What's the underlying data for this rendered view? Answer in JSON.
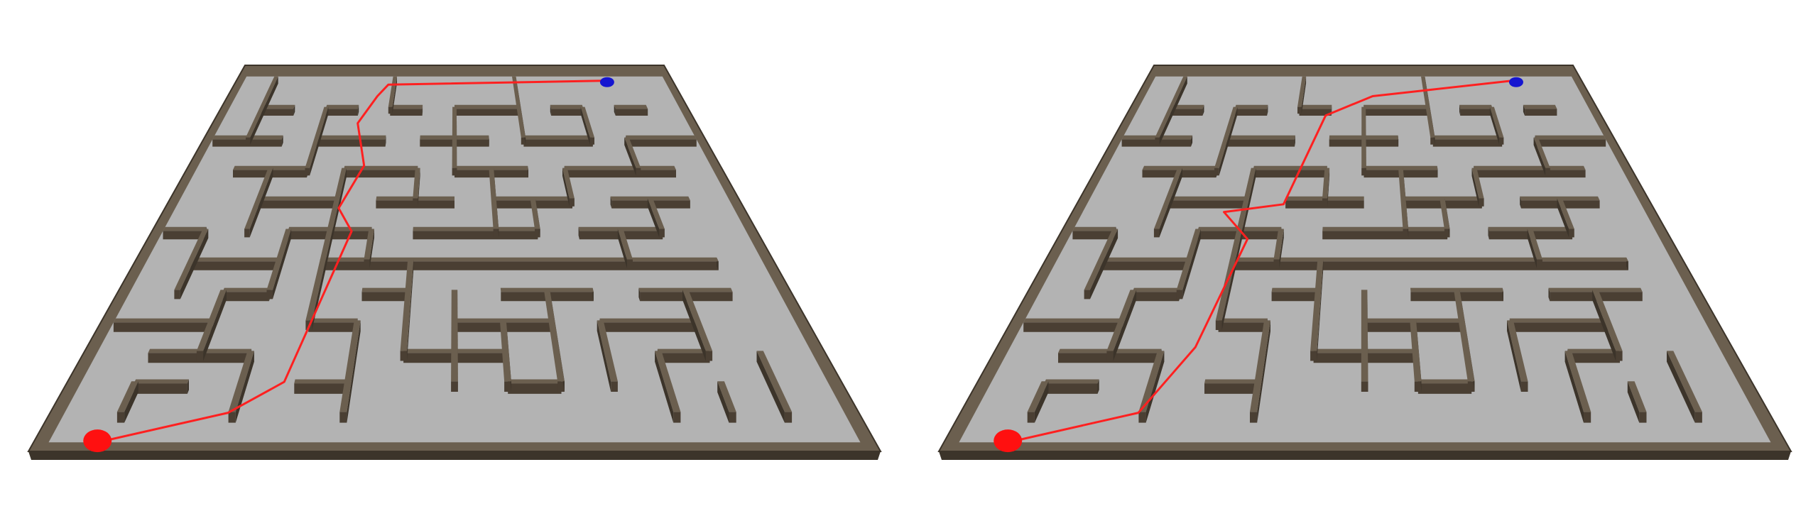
{
  "scene": {
    "background": "#ffffff",
    "floor_color": "#b3b3b3",
    "wall_top_color": "#6b5f4f",
    "wall_front_color": "#4a3f33",
    "wall_side_color": "#3c342a",
    "start_marker_color": "#ff1010",
    "goal_marker_color": "#1515d0",
    "path_color": "#ff2020"
  },
  "views": [
    {
      "id": "left",
      "path_nodes": [
        [
          0.07,
          0.98
        ],
        [
          0.22,
          0.9
        ],
        [
          0.28,
          0.82
        ],
        [
          0.33,
          0.43
        ],
        [
          0.3,
          0.37
        ],
        [
          0.33,
          0.26
        ],
        [
          0.3,
          0.15
        ],
        [
          0.33,
          0.08
        ],
        [
          0.35,
          0.05
        ],
        [
          0.84,
          0.04
        ]
      ]
    },
    {
      "id": "right",
      "path_nodes": [
        [
          0.07,
          0.98
        ],
        [
          0.22,
          0.9
        ],
        [
          0.27,
          0.73
        ],
        [
          0.31,
          0.45
        ],
        [
          0.26,
          0.38
        ],
        [
          0.36,
          0.36
        ],
        [
          0.42,
          0.13
        ],
        [
          0.52,
          0.08
        ],
        [
          0.84,
          0.04
        ]
      ]
    }
  ],
  "maze": {
    "grid": [
      14,
      12
    ],
    "walls": [
      [
        1,
        1,
        2,
        1
      ],
      [
        3,
        1,
        4,
        1
      ],
      [
        5,
        1,
        6,
        1
      ],
      [
        7,
        1,
        9,
        1
      ],
      [
        10,
        1,
        11,
        1
      ],
      [
        12,
        1,
        13,
        1
      ],
      [
        0,
        2,
        2,
        2
      ],
      [
        3,
        2,
        5,
        2
      ],
      [
        6,
        2,
        8,
        2
      ],
      [
        9,
        2,
        11,
        2
      ],
      [
        12,
        2,
        14,
        2
      ],
      [
        1,
        3,
        3,
        3
      ],
      [
        4,
        3,
        6,
        3
      ],
      [
        7,
        3,
        9,
        3
      ],
      [
        10,
        3,
        13,
        3
      ],
      [
        2,
        4,
        4,
        4
      ],
      [
        5,
        4,
        7,
        4
      ],
      [
        8,
        4,
        10,
        4
      ],
      [
        11,
        4,
        13,
        4
      ],
      [
        0,
        5,
        1,
        5
      ],
      [
        3,
        5,
        5,
        5
      ],
      [
        6,
        5,
        9,
        5
      ],
      [
        10,
        5,
        12,
        5
      ],
      [
        1,
        6,
        3,
        6
      ],
      [
        4,
        6,
        13,
        6
      ],
      [
        2,
        7,
        3,
        7
      ],
      [
        5,
        7,
        6,
        7
      ],
      [
        8,
        7,
        10,
        7
      ],
      [
        11,
        7,
        13,
        7
      ],
      [
        0,
        8,
        2,
        8
      ],
      [
        4,
        8,
        5,
        8
      ],
      [
        7,
        8,
        9,
        8
      ],
      [
        10,
        8,
        12,
        8
      ],
      [
        1,
        9,
        3,
        9
      ],
      [
        6,
        9,
        8,
        9
      ],
      [
        11,
        9,
        12,
        9
      ],
      [
        1,
        10,
        2,
        10
      ],
      [
        4,
        10,
        5,
        10
      ],
      [
        8,
        10,
        9,
        10
      ],
      [
        1,
        0,
        1,
        2
      ],
      [
        3,
        1,
        3,
        3
      ],
      [
        5,
        0,
        5,
        1
      ],
      [
        7,
        1,
        7,
        3
      ],
      [
        9,
        0,
        9,
        2
      ],
      [
        11,
        1,
        11,
        2
      ],
      [
        12,
        2,
        12,
        3
      ],
      [
        2,
        3,
        2,
        5
      ],
      [
        4,
        3,
        4,
        6
      ],
      [
        6,
        3,
        6,
        4
      ],
      [
        8,
        3,
        8,
        5
      ],
      [
        10,
        3,
        10,
        4
      ],
      [
        12,
        4,
        12,
        5
      ],
      [
        1,
        5,
        1,
        7
      ],
      [
        3,
        5,
        3,
        7
      ],
      [
        5,
        5,
        5,
        6
      ],
      [
        9,
        4,
        9,
        5
      ],
      [
        11,
        5,
        11,
        6
      ],
      [
        2,
        7,
        2,
        9
      ],
      [
        4,
        6,
        4,
        8
      ],
      [
        6,
        6,
        6,
        9
      ],
      [
        7,
        7,
        7,
        10
      ],
      [
        9,
        7,
        9,
        10
      ],
      [
        10,
        8,
        10,
        10
      ],
      [
        12,
        7,
        12,
        9
      ],
      [
        3,
        9,
        3,
        11
      ],
      [
        5,
        8,
        5,
        11
      ],
      [
        8,
        8,
        8,
        10
      ],
      [
        11,
        9,
        11,
        11
      ],
      [
        13,
        9,
        13,
        11
      ],
      [
        1,
        10,
        1,
        11
      ],
      [
        12,
        10,
        12,
        11
      ]
    ]
  }
}
